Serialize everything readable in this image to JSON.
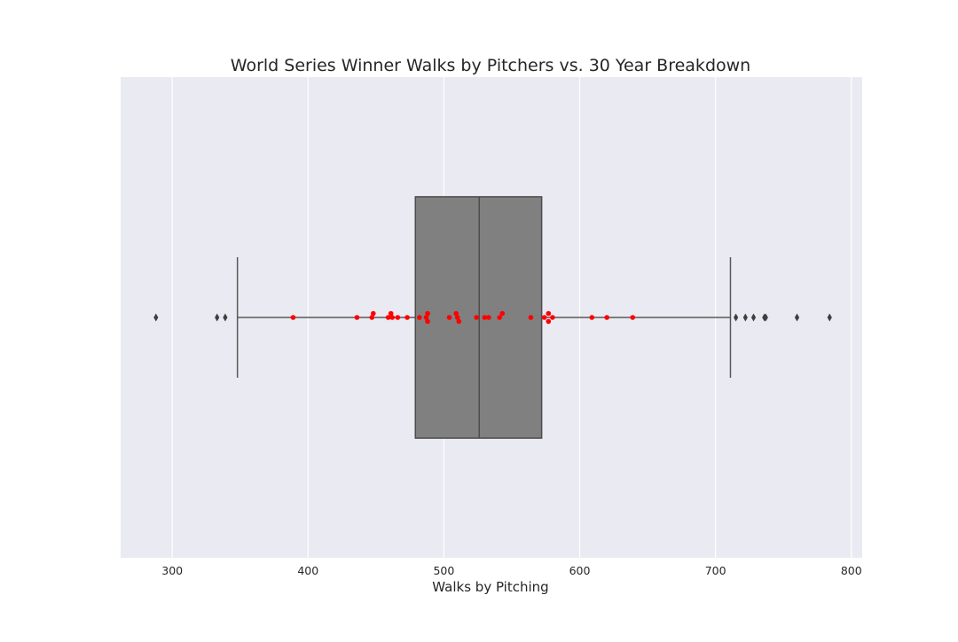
{
  "chart_data": {
    "type": "box",
    "title": "World Series Winner Walks by Pitchers vs. 30 Year Breakdown",
    "xlabel": "Walks by Pitching",
    "ylabel": "",
    "xlim": [
      262,
      808
    ],
    "x_ticks": [
      300,
      400,
      500,
      600,
      700,
      800
    ],
    "x_tick_labels": [
      "300",
      "400",
      "500",
      "600",
      "700",
      "800"
    ],
    "grid": true,
    "orientation": "horizontal",
    "box": {
      "q1": 479,
      "median": 526,
      "q3": 572,
      "whisker_low": 348,
      "whisker_high": 711,
      "outliers": [
        288,
        333,
        339,
        715,
        722,
        728,
        736,
        737,
        760,
        784
      ]
    },
    "points": [
      {
        "x": 389,
        "jitter": 0
      },
      {
        "x": 436,
        "jitter": 0
      },
      {
        "x": 447,
        "jitter": 0
      },
      {
        "x": 448,
        "jitter": -1
      },
      {
        "x": 459,
        "jitter": 0
      },
      {
        "x": 461,
        "jitter": -1
      },
      {
        "x": 462,
        "jitter": 0
      },
      {
        "x": 466,
        "jitter": 0
      },
      {
        "x": 473,
        "jitter": 0
      },
      {
        "x": 482,
        "jitter": 0
      },
      {
        "x": 487,
        "jitter": 0
      },
      {
        "x": 488,
        "jitter": -1
      },
      {
        "x": 488,
        "jitter": 1
      },
      {
        "x": 504,
        "jitter": 0
      },
      {
        "x": 509,
        "jitter": -1
      },
      {
        "x": 510,
        "jitter": 0
      },
      {
        "x": 511,
        "jitter": 1
      },
      {
        "x": 524,
        "jitter": 0
      },
      {
        "x": 530,
        "jitter": 0
      },
      {
        "x": 533,
        "jitter": 0
      },
      {
        "x": 541,
        "jitter": 0
      },
      {
        "x": 543,
        "jitter": -1
      },
      {
        "x": 564,
        "jitter": 0
      },
      {
        "x": 574,
        "jitter": 0
      },
      {
        "x": 577,
        "jitter": -1
      },
      {
        "x": 577,
        "jitter": 1
      },
      {
        "x": 580,
        "jitter": 0
      },
      {
        "x": 609,
        "jitter": 0
      },
      {
        "x": 620,
        "jitter": 0
      },
      {
        "x": 639,
        "jitter": 0
      }
    ],
    "colors": {
      "background": "#eaeaf2",
      "grid": "#ffffff",
      "box_fill": "#808080",
      "box_edge": "#4d4d4d",
      "whisker": "#595959",
      "outlier": "#3f3f3f",
      "points": "#ff0000"
    }
  }
}
